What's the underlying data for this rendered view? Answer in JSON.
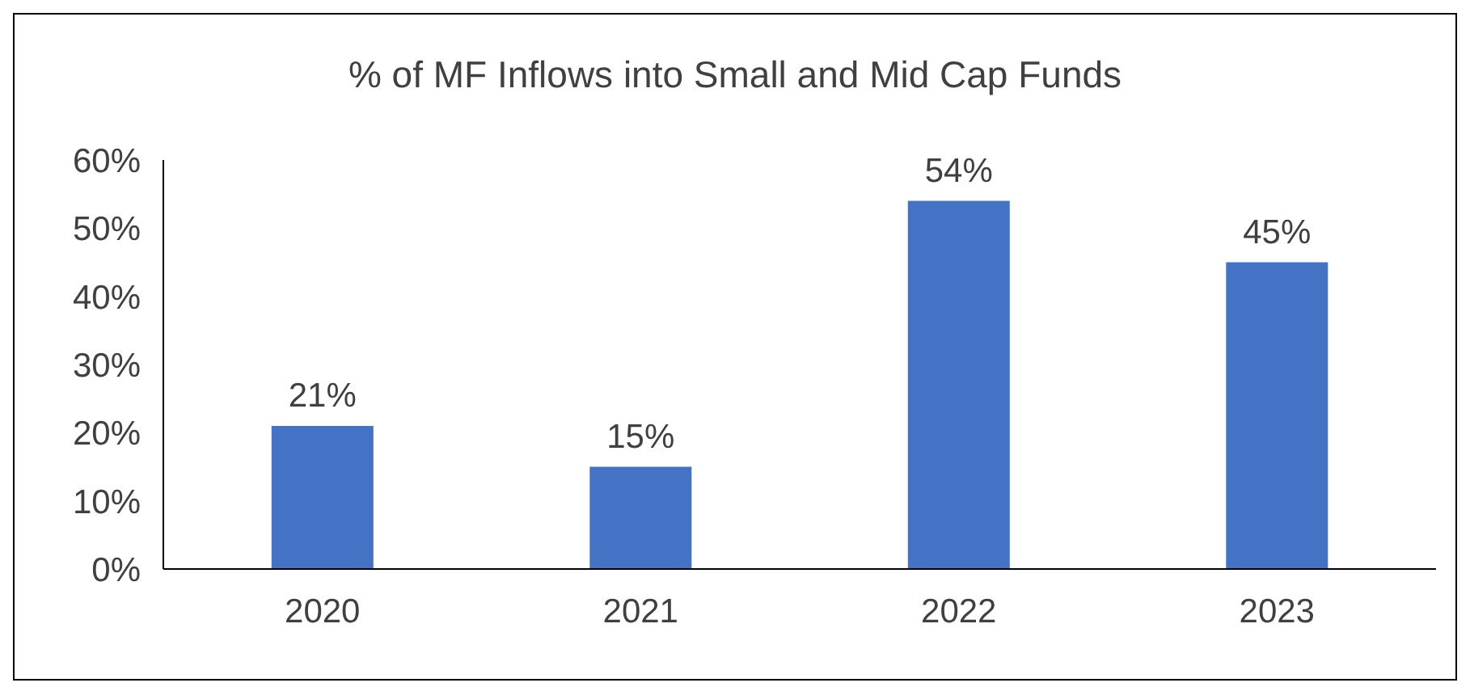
{
  "chart_data": {
    "type": "bar",
    "title": "% of MF Inflows into Small and Mid Cap Funds",
    "categories": [
      "2020",
      "2021",
      "2022",
      "2023"
    ],
    "values": [
      21,
      15,
      54,
      45
    ],
    "value_labels": [
      "21%",
      "15%",
      "54%",
      "45%"
    ],
    "color": "#4472c4",
    "ylim": [
      0,
      60
    ],
    "yticks": [
      {
        "value": 0,
        "label": "0%"
      },
      {
        "value": 10,
        "label": "10%"
      },
      {
        "value": 20,
        "label": "20%"
      },
      {
        "value": 30,
        "label": "30%"
      },
      {
        "value": 40,
        "label": "40%"
      },
      {
        "value": 50,
        "label": "50%"
      },
      {
        "value": 60,
        "label": "60%"
      }
    ],
    "grid": false,
    "legend": false
  }
}
